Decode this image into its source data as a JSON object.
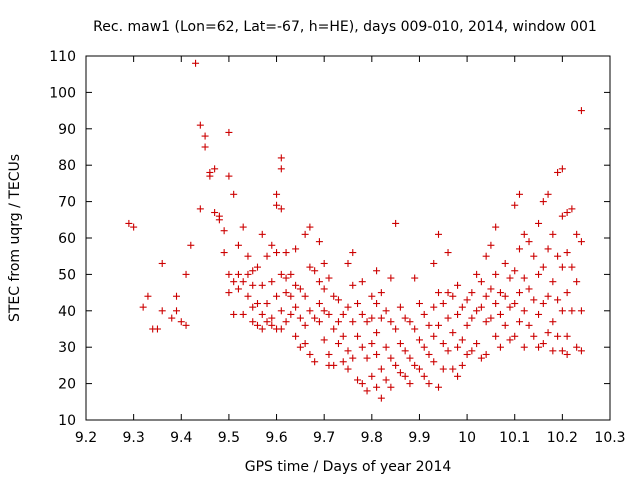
{
  "chart_data": {
    "type": "scatter",
    "title": "Rec. maw1 (Lon=62, Lat=-67, h=HE), days 009-010, 2014, window 001",
    "xlabel": "GPS time / Days of year 2014",
    "ylabel": "STEC from uqrg / TECUs",
    "xlim": [
      9.2,
      10.3
    ],
    "ylim": [
      10,
      110
    ],
    "xticks": [
      "9.2",
      "9.3",
      "9.4",
      "9.5",
      "9.6",
      "9.7",
      "9.8",
      "9.9",
      "10",
      "10.1",
      "10.2",
      "10.3"
    ],
    "yticks": [
      "10",
      "20",
      "30",
      "40",
      "50",
      "60",
      "70",
      "80",
      "90",
      "100",
      "110"
    ],
    "grid": false,
    "legend": "none",
    "marker": "plus",
    "marker_color": "#cc0000",
    "series": [
      {
        "points": [
          [
            9.29,
            64
          ],
          [
            9.3,
            63
          ],
          [
            9.32,
            41
          ],
          [
            9.33,
            44
          ],
          [
            9.34,
            35
          ],
          [
            9.35,
            35
          ],
          [
            9.36,
            40
          ],
          [
            9.36,
            53
          ],
          [
            9.38,
            38
          ],
          [
            9.39,
            40
          ],
          [
            9.39,
            44
          ],
          [
            9.4,
            37
          ],
          [
            9.41,
            36
          ],
          [
            9.41,
            50
          ],
          [
            9.42,
            58
          ],
          [
            9.43,
            108
          ],
          [
            9.44,
            68
          ],
          [
            9.44,
            91
          ],
          [
            9.45,
            88
          ],
          [
            9.45,
            85
          ],
          [
            9.46,
            77
          ],
          [
            9.46,
            78
          ],
          [
            9.47,
            67
          ],
          [
            9.47,
            79
          ],
          [
            9.48,
            66
          ],
          [
            9.48,
            65
          ],
          [
            9.49,
            62
          ],
          [
            9.49,
            56
          ],
          [
            9.5,
            89
          ],
          [
            9.5,
            77
          ],
          [
            9.5,
            50
          ],
          [
            9.5,
            45
          ],
          [
            9.51,
            72
          ],
          [
            9.51,
            48
          ],
          [
            9.51,
            39
          ],
          [
            9.52,
            58
          ],
          [
            9.52,
            50
          ],
          [
            9.52,
            46
          ],
          [
            9.53,
            63
          ],
          [
            9.53,
            48
          ],
          [
            9.53,
            39
          ],
          [
            9.54,
            55
          ],
          [
            9.54,
            50
          ],
          [
            9.54,
            44
          ],
          [
            9.55,
            51
          ],
          [
            9.55,
            47
          ],
          [
            9.55,
            41
          ],
          [
            9.55,
            37
          ],
          [
            9.56,
            52
          ],
          [
            9.56,
            42
          ],
          [
            9.56,
            36
          ],
          [
            9.57,
            61
          ],
          [
            9.57,
            47
          ],
          [
            9.57,
            39
          ],
          [
            9.57,
            35
          ],
          [
            9.58,
            55
          ],
          [
            9.58,
            42
          ],
          [
            9.58,
            37
          ],
          [
            9.59,
            58
          ],
          [
            9.59,
            48
          ],
          [
            9.59,
            38
          ],
          [
            9.59,
            36
          ],
          [
            9.6,
            72
          ],
          [
            9.6,
            69
          ],
          [
            9.6,
            56
          ],
          [
            9.6,
            44
          ],
          [
            9.6,
            35
          ],
          [
            9.61,
            82
          ],
          [
            9.61,
            79
          ],
          [
            9.61,
            68
          ],
          [
            9.61,
            50
          ],
          [
            9.61,
            40
          ],
          [
            9.61,
            35
          ],
          [
            9.62,
            56
          ],
          [
            9.62,
            49
          ],
          [
            9.62,
            45
          ],
          [
            9.62,
            37
          ],
          [
            9.63,
            50
          ],
          [
            9.63,
            44
          ],
          [
            9.63,
            39
          ],
          [
            9.64,
            57
          ],
          [
            9.64,
            47
          ],
          [
            9.64,
            41
          ],
          [
            9.64,
            33
          ],
          [
            9.65,
            46
          ],
          [
            9.65,
            38
          ],
          [
            9.65,
            30
          ],
          [
            9.66,
            61
          ],
          [
            9.66,
            44
          ],
          [
            9.66,
            36
          ],
          [
            9.66,
            31
          ],
          [
            9.67,
            63
          ],
          [
            9.67,
            52
          ],
          [
            9.67,
            40
          ],
          [
            9.67,
            28
          ],
          [
            9.68,
            51
          ],
          [
            9.68,
            38
          ],
          [
            9.68,
            26
          ],
          [
            9.69,
            59
          ],
          [
            9.69,
            48
          ],
          [
            9.69,
            42
          ],
          [
            9.69,
            37
          ],
          [
            9.7,
            53
          ],
          [
            9.7,
            46
          ],
          [
            9.7,
            40
          ],
          [
            9.7,
            32
          ],
          [
            9.71,
            49
          ],
          [
            9.71,
            39
          ],
          [
            9.71,
            28
          ],
          [
            9.71,
            25
          ],
          [
            9.72,
            44
          ],
          [
            9.72,
            35
          ],
          [
            9.72,
            25
          ],
          [
            9.73,
            43
          ],
          [
            9.73,
            37
          ],
          [
            9.73,
            31
          ],
          [
            9.74,
            39
          ],
          [
            9.74,
            33
          ],
          [
            9.74,
            26
          ],
          [
            9.75,
            53
          ],
          [
            9.75,
            41
          ],
          [
            9.75,
            29
          ],
          [
            9.75,
            24
          ],
          [
            9.76,
            56
          ],
          [
            9.76,
            47
          ],
          [
            9.76,
            37
          ],
          [
            9.76,
            27
          ],
          [
            9.77,
            42
          ],
          [
            9.77,
            33
          ],
          [
            9.77,
            21
          ],
          [
            9.78,
            48
          ],
          [
            9.78,
            39
          ],
          [
            9.78,
            30
          ],
          [
            9.78,
            20
          ],
          [
            9.79,
            37
          ],
          [
            9.79,
            27
          ],
          [
            9.79,
            18
          ],
          [
            9.8,
            44
          ],
          [
            9.8,
            38
          ],
          [
            9.8,
            31
          ],
          [
            9.8,
            22
          ],
          [
            9.81,
            51
          ],
          [
            9.81,
            42
          ],
          [
            9.81,
            34
          ],
          [
            9.81,
            28
          ],
          [
            9.81,
            19
          ],
          [
            9.82,
            45
          ],
          [
            9.82,
            38
          ],
          [
            9.82,
            24
          ],
          [
            9.82,
            16
          ],
          [
            9.83,
            40
          ],
          [
            9.83,
            30
          ],
          [
            9.83,
            21
          ],
          [
            9.84,
            49
          ],
          [
            9.84,
            37
          ],
          [
            9.84,
            27
          ],
          [
            9.84,
            19
          ],
          [
            9.85,
            64
          ],
          [
            9.85,
            35
          ],
          [
            9.85,
            25
          ],
          [
            9.86,
            41
          ],
          [
            9.86,
            31
          ],
          [
            9.86,
            23
          ],
          [
            9.87,
            38
          ],
          [
            9.87,
            29
          ],
          [
            9.87,
            22
          ],
          [
            9.88,
            37
          ],
          [
            9.88,
            27
          ],
          [
            9.88,
            20
          ],
          [
            9.89,
            49
          ],
          [
            9.89,
            35
          ],
          [
            9.89,
            25
          ],
          [
            9.9,
            42
          ],
          [
            9.9,
            32
          ],
          [
            9.9,
            24
          ],
          [
            9.91,
            39
          ],
          [
            9.91,
            30
          ],
          [
            9.91,
            22
          ],
          [
            9.92,
            36
          ],
          [
            9.92,
            28
          ],
          [
            9.92,
            20
          ],
          [
            9.93,
            53
          ],
          [
            9.93,
            41
          ],
          [
            9.93,
            33
          ],
          [
            9.93,
            26
          ],
          [
            9.94,
            61
          ],
          [
            9.94,
            45
          ],
          [
            9.94,
            36
          ],
          [
            9.94,
            19
          ],
          [
            9.95,
            42
          ],
          [
            9.95,
            31
          ],
          [
            9.95,
            24
          ],
          [
            9.96,
            56
          ],
          [
            9.96,
            45
          ],
          [
            9.96,
            38
          ],
          [
            9.96,
            29
          ],
          [
            9.97,
            44
          ],
          [
            9.97,
            34
          ],
          [
            9.97,
            24
          ],
          [
            9.98,
            47
          ],
          [
            9.98,
            39
          ],
          [
            9.98,
            30
          ],
          [
            9.98,
            22
          ],
          [
            9.99,
            41
          ],
          [
            9.99,
            32
          ],
          [
            9.99,
            25
          ],
          [
            10.0,
            43
          ],
          [
            10.0,
            36
          ],
          [
            10.0,
            28
          ],
          [
            10.01,
            45
          ],
          [
            10.01,
            38
          ],
          [
            10.01,
            29
          ],
          [
            10.02,
            50
          ],
          [
            10.02,
            40
          ],
          [
            10.02,
            31
          ],
          [
            10.03,
            48
          ],
          [
            10.03,
            41
          ],
          [
            10.03,
            27
          ],
          [
            10.04,
            55
          ],
          [
            10.04,
            44
          ],
          [
            10.04,
            37
          ],
          [
            10.04,
            28
          ],
          [
            10.05,
            58
          ],
          [
            10.05,
            46
          ],
          [
            10.05,
            38
          ],
          [
            10.06,
            63
          ],
          [
            10.06,
            50
          ],
          [
            10.06,
            42
          ],
          [
            10.06,
            33
          ],
          [
            10.07,
            45
          ],
          [
            10.07,
            39
          ],
          [
            10.07,
            30
          ],
          [
            10.08,
            53
          ],
          [
            10.08,
            44
          ],
          [
            10.08,
            36
          ],
          [
            10.09,
            49
          ],
          [
            10.09,
            41
          ],
          [
            10.09,
            32
          ],
          [
            10.1,
            69
          ],
          [
            10.1,
            51
          ],
          [
            10.1,
            42
          ],
          [
            10.1,
            33
          ],
          [
            10.11,
            72
          ],
          [
            10.11,
            57
          ],
          [
            10.11,
            45
          ],
          [
            10.11,
            37
          ],
          [
            10.12,
            61
          ],
          [
            10.12,
            49
          ],
          [
            10.12,
            40
          ],
          [
            10.12,
            30
          ],
          [
            10.13,
            59
          ],
          [
            10.13,
            46
          ],
          [
            10.13,
            36
          ],
          [
            10.14,
            55
          ],
          [
            10.14,
            43
          ],
          [
            10.14,
            33
          ],
          [
            10.15,
            64
          ],
          [
            10.15,
            50
          ],
          [
            10.15,
            39
          ],
          [
            10.15,
            30
          ],
          [
            10.16,
            70
          ],
          [
            10.16,
            52
          ],
          [
            10.16,
            42
          ],
          [
            10.16,
            31
          ],
          [
            10.17,
            72
          ],
          [
            10.17,
            57
          ],
          [
            10.17,
            44
          ],
          [
            10.17,
            34
          ],
          [
            10.18,
            61
          ],
          [
            10.18,
            48
          ],
          [
            10.18,
            37
          ],
          [
            10.18,
            29
          ],
          [
            10.19,
            78
          ],
          [
            10.19,
            55
          ],
          [
            10.19,
            43
          ],
          [
            10.19,
            33
          ],
          [
            10.2,
            79
          ],
          [
            10.2,
            66
          ],
          [
            10.2,
            52
          ],
          [
            10.2,
            40
          ],
          [
            10.2,
            29
          ],
          [
            10.21,
            67
          ],
          [
            10.21,
            56
          ],
          [
            10.21,
            45
          ],
          [
            10.21,
            33
          ],
          [
            10.21,
            28
          ],
          [
            10.22,
            68
          ],
          [
            10.22,
            52
          ],
          [
            10.22,
            40
          ],
          [
            10.23,
            61
          ],
          [
            10.23,
            48
          ],
          [
            10.23,
            30
          ],
          [
            10.24,
            95
          ],
          [
            10.24,
            59
          ],
          [
            10.24,
            40
          ],
          [
            10.24,
            29
          ]
        ]
      }
    ]
  }
}
